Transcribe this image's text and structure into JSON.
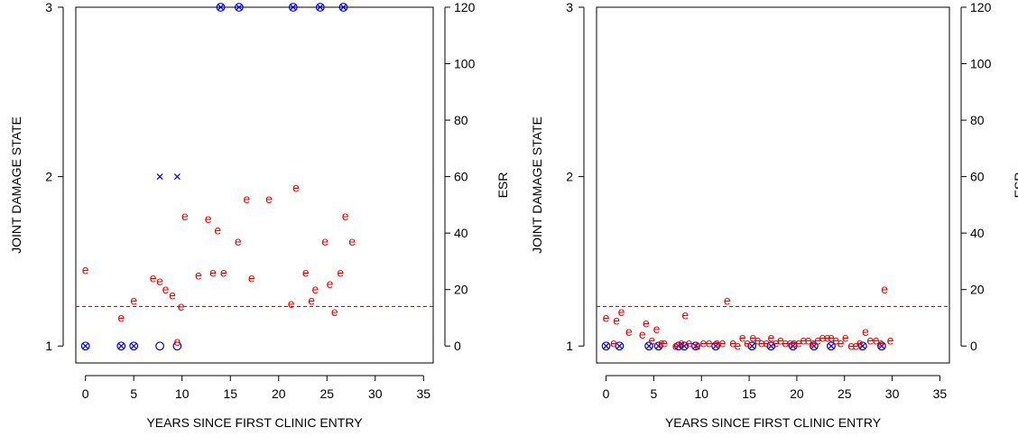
{
  "colors": {
    "damage": "#0000ee",
    "esr": "#ee0000",
    "axis": "#000000"
  },
  "chart_data": [
    {
      "type": "scatter",
      "xlabel": "YEARS  SINCE  FIRST  CLINIC  ENTRY",
      "ylabel_left": "JOINT  DAMAGE  STATE",
      "ylabel_right": "ESR",
      "xlim": [
        -1,
        36
      ],
      "xticks": [
        "0",
        "5",
        "10",
        "15",
        "20",
        "25",
        "30",
        "35"
      ],
      "ylim_left": [
        0.9,
        3.0
      ],
      "yticks_left": [
        "1",
        "2",
        "3"
      ],
      "ylim_right": [
        -6,
        120
      ],
      "yticks_right": [
        "0",
        "20",
        "40",
        "60",
        "80",
        "100",
        "120"
      ],
      "reference_line_esr": 14,
      "series": [
        {
          "marker": "circle-x",
          "color": "blue",
          "points": [
            [
              0,
              1
            ],
            [
              3.7,
              1
            ],
            [
              5,
              1
            ],
            [
              14,
              3
            ],
            [
              15.9,
              3
            ],
            [
              21.5,
              3
            ],
            [
              24.3,
              3
            ],
            [
              26.7,
              3
            ]
          ]
        },
        {
          "marker": "circle",
          "color": "blue",
          "points": [
            [
              7.7,
              1
            ],
            [
              9.5,
              1
            ]
          ]
        },
        {
          "marker": "x",
          "color": "blue",
          "points": [
            [
              7.7,
              2
            ],
            [
              9.5,
              2
            ]
          ]
        },
        {
          "marker": "e",
          "color": "red",
          "points": [
            [
              0,
              27
            ],
            [
              3.7,
              10
            ],
            [
              5,
              16
            ],
            [
              7,
              24
            ],
            [
              7.7,
              23
            ],
            [
              8.3,
              20
            ],
            [
              9,
              18
            ],
            [
              9.5,
              1.5
            ],
            [
              9.9,
              14
            ],
            [
              10.3,
              46
            ],
            [
              11.7,
              25
            ],
            [
              12.7,
              45
            ],
            [
              13.2,
              26
            ],
            [
              13.7,
              41
            ],
            [
              14.3,
              26
            ],
            [
              15.8,
              37
            ],
            [
              16.7,
              52
            ],
            [
              17.2,
              24
            ],
            [
              19,
              52
            ],
            [
              21.3,
              15
            ],
            [
              21.8,
              56
            ],
            [
              22.8,
              26
            ],
            [
              23.4,
              16
            ],
            [
              23.8,
              20
            ],
            [
              24.8,
              37
            ],
            [
              25.3,
              22
            ],
            [
              25.8,
              12
            ],
            [
              26.4,
              26
            ],
            [
              26.9,
              46
            ],
            [
              27.6,
              37
            ]
          ]
        }
      ]
    },
    {
      "type": "scatter",
      "xlabel": "YEARS  SINCE  FIRST  CLINIC  ENTRY",
      "ylabel_left": "JOINT  DAMAGE  STATE",
      "ylabel_right": "ESR",
      "xlim": [
        -1,
        36
      ],
      "xticks": [
        "0",
        "5",
        "10",
        "15",
        "20",
        "25",
        "30",
        "35"
      ],
      "ylim_left": [
        0.9,
        3.0
      ],
      "yticks_left": [
        "1",
        "2",
        "3"
      ],
      "ylim_right": [
        -6,
        120
      ],
      "yticks_right": [
        "0",
        "20",
        "40",
        "60",
        "80",
        "100",
        "120"
      ],
      "reference_line_esr": 14,
      "series": [
        {
          "marker": "circle-x",
          "color": "blue",
          "points": [
            [
              0,
              1
            ],
            [
              1.4,
              1
            ],
            [
              4.5,
              1
            ],
            [
              5.5,
              1
            ],
            [
              7.6,
              1
            ],
            [
              8.2,
              1
            ],
            [
              9.4,
              1
            ],
            [
              11.5,
              1
            ],
            [
              15.3,
              1
            ],
            [
              17.3,
              1
            ],
            [
              19.6,
              1
            ],
            [
              21.8,
              1
            ],
            [
              23.6,
              1
            ],
            [
              26.9,
              1
            ],
            [
              28.9,
              1
            ]
          ]
        },
        {
          "marker": "e",
          "color": "red",
          "points": [
            [
              0,
              10
            ],
            [
              0.8,
              1
            ],
            [
              1.1,
              9
            ],
            [
              1.6,
              12
            ],
            [
              2.4,
              5
            ],
            [
              3.8,
              4
            ],
            [
              4.2,
              8
            ],
            [
              4.8,
              2
            ],
            [
              5.3,
              6
            ],
            [
              5.8,
              1
            ],
            [
              6.1,
              1
            ],
            [
              7.3,
              0
            ],
            [
              7.9,
              1
            ],
            [
              8.3,
              11
            ],
            [
              8.7,
              1
            ],
            [
              9.6,
              0
            ],
            [
              10.2,
              1
            ],
            [
              10.8,
              1
            ],
            [
              11.6,
              1
            ],
            [
              12.2,
              1
            ],
            [
              12.7,
              16
            ],
            [
              13.3,
              1
            ],
            [
              13.8,
              0
            ],
            [
              14.3,
              3
            ],
            [
              14.8,
              1
            ],
            [
              15.4,
              3
            ],
            [
              15.9,
              2
            ],
            [
              16.3,
              1
            ],
            [
              16.8,
              1
            ],
            [
              17.3,
              3
            ],
            [
              17.8,
              1
            ],
            [
              18.3,
              2
            ],
            [
              18.8,
              1
            ],
            [
              19.3,
              1
            ],
            [
              19.7,
              1
            ],
            [
              20.2,
              1
            ],
            [
              20.7,
              2
            ],
            [
              21.2,
              2
            ],
            [
              21.7,
              1
            ],
            [
              22.2,
              2
            ],
            [
              22.7,
              3
            ],
            [
              23.2,
              3
            ],
            [
              23.6,
              3
            ],
            [
              24.1,
              2
            ],
            [
              24.6,
              1
            ],
            [
              25.1,
              3
            ],
            [
              25.7,
              0
            ],
            [
              26.2,
              0
            ],
            [
              26.6,
              1
            ],
            [
              27.2,
              5
            ],
            [
              27.7,
              2
            ],
            [
              28.3,
              2
            ],
            [
              28.8,
              1
            ],
            [
              29.2,
              20
            ],
            [
              29.8,
              2
            ]
          ]
        }
      ]
    }
  ]
}
